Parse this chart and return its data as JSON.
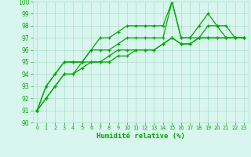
{
  "xlabel": "Humidité relative (%)",
  "xlim": [
    -0.5,
    23.5
  ],
  "ylim": [
    90,
    100
  ],
  "xticks": [
    0,
    1,
    2,
    3,
    4,
    5,
    6,
    7,
    8,
    9,
    10,
    11,
    12,
    13,
    14,
    15,
    16,
    17,
    18,
    19,
    20,
    21,
    22,
    23
  ],
  "yticks": [
    90,
    91,
    92,
    93,
    94,
    95,
    96,
    97,
    98,
    99,
    100
  ],
  "bg_color": "#d8f5ee",
  "grid_color": "#b0ddd0",
  "line_color": "#00aa00",
  "line1_x": [
    0,
    1,
    2,
    3,
    4,
    5,
    6,
    7,
    8,
    9,
    10,
    11,
    12,
    13,
    14,
    15,
    16,
    17,
    18,
    19,
    20,
    21,
    22,
    23
  ],
  "line1_y": [
    91,
    93,
    94,
    95,
    95,
    95,
    96,
    97,
    97,
    97.5,
    98,
    98,
    98,
    98,
    98,
    100,
    97,
    97,
    98,
    99,
    98,
    97,
    97,
    97
  ],
  "line2_x": [
    0,
    1,
    2,
    3,
    4,
    5,
    6,
    7,
    8,
    9,
    10,
    11,
    12,
    13,
    14,
    15,
    16,
    17,
    18,
    19,
    20,
    21,
    22,
    23
  ],
  "line2_y": [
    91,
    93,
    94,
    95,
    95,
    95,
    96,
    96,
    96,
    96.5,
    97,
    97,
    97,
    97,
    97,
    100,
    97,
    97,
    97,
    98,
    98,
    98,
    97,
    97
  ],
  "line3_x": [
    0,
    1,
    2,
    3,
    4,
    5,
    6,
    7,
    8,
    9,
    10,
    11,
    12,
    13,
    14,
    15,
    16,
    17,
    18,
    19,
    20,
    21,
    22,
    23
  ],
  "line3_y": [
    91,
    92,
    93,
    94,
    94,
    95,
    95,
    95,
    95.5,
    96,
    96,
    96,
    96,
    96,
    96.5,
    97,
    96.5,
    96.5,
    97,
    97,
    97,
    97,
    97,
    97
  ],
  "line4_x": [
    0,
    1,
    2,
    3,
    4,
    5,
    6,
    7,
    8,
    9,
    10,
    11,
    12,
    13,
    14,
    15,
    16,
    17,
    18,
    19,
    20,
    21,
    22,
    23
  ],
  "line4_y": [
    91,
    92,
    93,
    94,
    94,
    94.5,
    95,
    95,
    95,
    95.5,
    95.5,
    96,
    96,
    96,
    96.5,
    97,
    96.5,
    96.5,
    97,
    97,
    97,
    97,
    97,
    97
  ]
}
